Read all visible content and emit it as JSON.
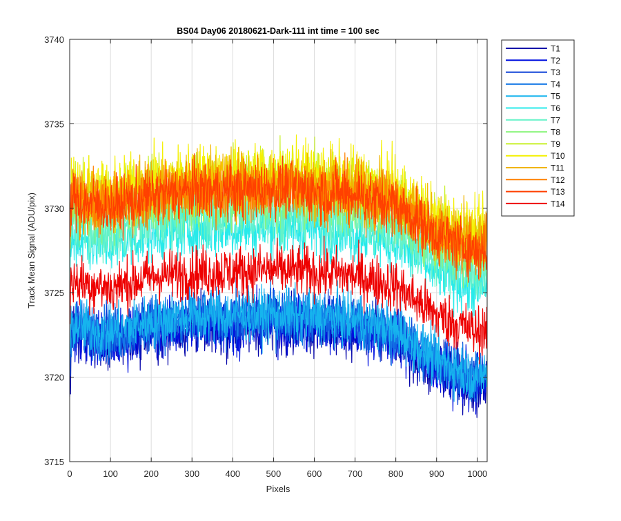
{
  "chart_data": {
    "type": "line",
    "title": "BS04 Day06 20180621-Dark-111 int time = 100 sec",
    "xlabel": "Pixels",
    "ylabel": "Track Mean Signal (ADU/pix)",
    "xlim": [
      0,
      1024
    ],
    "ylim": [
      3715,
      3740
    ],
    "x_ticks": [
      0,
      100,
      200,
      300,
      400,
      500,
      600,
      700,
      800,
      900,
      1000
    ],
    "y_ticks": [
      3715,
      3720,
      3725,
      3730,
      3735,
      3740
    ],
    "grid": true,
    "legend_position": "outside-top-right",
    "profile": {
      "x": [
        0,
        100,
        200,
        300,
        400,
        500,
        600,
        700,
        800,
        900,
        1000,
        1024
      ],
      "y": [
        0.55,
        0.05,
        0.75,
        1.0,
        1.05,
        1.15,
        1.05,
        0.8,
        0.2,
        -1.55,
        -2.55,
        -2.25
      ]
    },
    "series": [
      {
        "name": "T1",
        "color": "#0000a8",
        "base": 3722.0,
        "noise": 1.4
      },
      {
        "name": "T2",
        "color": "#0010e0",
        "base": 3722.1,
        "noise": 1.4
      },
      {
        "name": "T3",
        "color": "#0a3fd6",
        "base": 3722.4,
        "noise": 1.3
      },
      {
        "name": "T4",
        "color": "#1478e6",
        "base": 3722.5,
        "noise": 1.4
      },
      {
        "name": "T5",
        "color": "#16b4ee",
        "base": 3722.6,
        "noise": 1.3
      },
      {
        "name": "T6",
        "color": "#28eaea",
        "base": 3727.7,
        "noise": 1.4
      },
      {
        "name": "T7",
        "color": "#64f2c8",
        "base": 3728.6,
        "noise": 1.5
      },
      {
        "name": "T8",
        "color": "#8af47c",
        "base": 3729.6,
        "noise": 1.5
      },
      {
        "name": "T9",
        "color": "#c8f02a",
        "base": 3730.5,
        "noise": 1.6
      },
      {
        "name": "T10",
        "color": "#f4f000",
        "base": 3730.9,
        "noise": 1.6
      },
      {
        "name": "T11",
        "color": "#f0b400",
        "base": 3730.4,
        "noise": 1.6
      },
      {
        "name": "T12",
        "color": "#ff8000",
        "base": 3730.0,
        "noise": 1.5
      },
      {
        "name": "T13",
        "color": "#ff4000",
        "base": 3730.0,
        "noise": 1.4
      },
      {
        "name": "T14",
        "color": "#ee0000",
        "base": 3725.2,
        "noise": 1.3
      }
    ]
  }
}
